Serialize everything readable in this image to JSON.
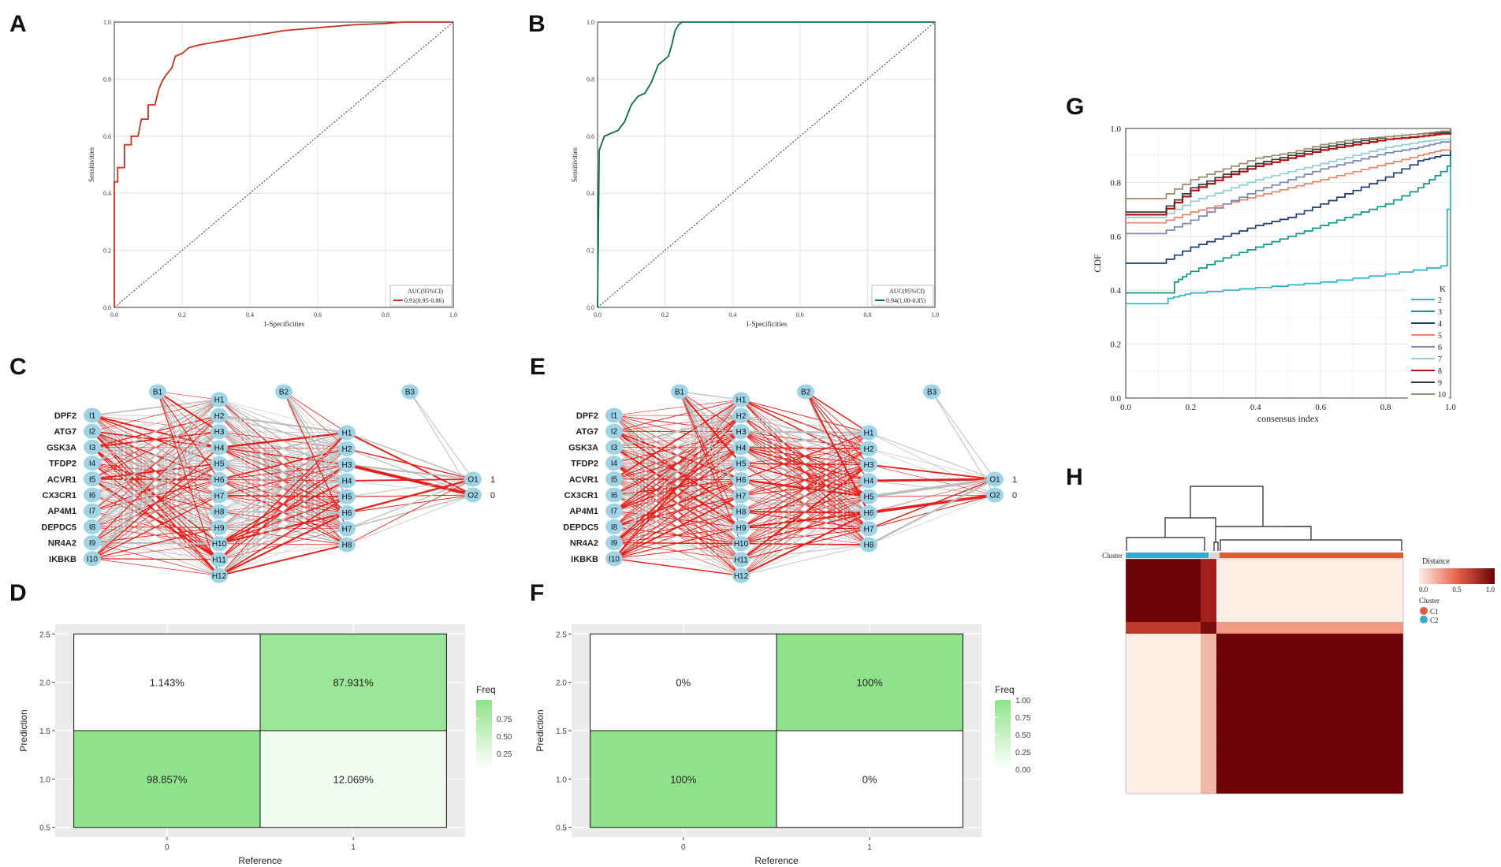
{
  "panel_labels": [
    "A",
    "B",
    "C",
    "D",
    "E",
    "F",
    "G",
    "H"
  ],
  "chart_data": [
    {
      "panel": "A",
      "type": "line",
      "title": "",
      "xlabel": "1-Specificities",
      "ylabel": "Sensitivities",
      "xlim": [
        0,
        1
      ],
      "ylim": [
        0,
        1
      ],
      "ticks": [
        "0.0",
        "0.2",
        "0.4",
        "0.6",
        "0.8",
        "1.0"
      ],
      "x": [
        0,
        0,
        0.01,
        0.01,
        0.03,
        0.03,
        0.05,
        0.05,
        0.07,
        0.08,
        0.1,
        0.1,
        0.12,
        0.13,
        0.14,
        0.15,
        0.17,
        0.18,
        0.2,
        0.22,
        0.25,
        0.3,
        0.35,
        0.4,
        0.5,
        0.6,
        0.7,
        0.8,
        0.85,
        0.9,
        1.0
      ],
      "y": [
        0,
        0.44,
        0.44,
        0.49,
        0.49,
        0.57,
        0.57,
        0.6,
        0.6,
        0.66,
        0.66,
        0.71,
        0.71,
        0.76,
        0.79,
        0.81,
        0.84,
        0.88,
        0.89,
        0.91,
        0.92,
        0.93,
        0.94,
        0.95,
        0.97,
        0.98,
        0.99,
        0.995,
        1,
        1,
        1
      ],
      "color": "#c8311f",
      "legend_title": "AUC(95%CI)",
      "legend_entry": "0.91(0.95-0.86)"
    },
    {
      "panel": "B",
      "type": "line",
      "title": "",
      "xlabel": "1-Specificities",
      "ylabel": "Sensitivities",
      "xlim": [
        0,
        1
      ],
      "ylim": [
        0,
        1
      ],
      "ticks": [
        "0.0",
        "0.2",
        "0.4",
        "0.6",
        "0.8",
        "1.0"
      ],
      "x": [
        0,
        0.005,
        0.02,
        0.04,
        0.06,
        0.08,
        0.1,
        0.12,
        0.14,
        0.16,
        0.18,
        0.2,
        0.21,
        0.22,
        0.23,
        0.24,
        0.25,
        0.27,
        0.3,
        0.5,
        1.0
      ],
      "y": [
        0,
        0.55,
        0.6,
        0.61,
        0.62,
        0.65,
        0.71,
        0.74,
        0.75,
        0.79,
        0.85,
        0.87,
        0.88,
        0.92,
        0.97,
        0.99,
        1,
        1,
        1,
        1,
        1
      ],
      "color": "#0e6b4c",
      "legend_title": "AUC(95%CI)",
      "legend_entry": "0.94(1.00-0.85)"
    },
    {
      "panel": "D",
      "type": "heatmap",
      "title": "",
      "xlabel": "Reference",
      "ylabel": "Prediction",
      "x_ticks": [
        "0",
        "1"
      ],
      "y_ticks": [
        "0.5",
        "1.0",
        "1.5",
        "2.0",
        "2.5"
      ],
      "cells": [
        {
          "ref": "0",
          "pred": "1",
          "label": "98.857%",
          "freq": 0.98857
        },
        {
          "ref": "1",
          "pred": "1",
          "label": "12.069%",
          "freq": 0.12069
        },
        {
          "ref": "0",
          "pred": "2",
          "label": "1.143%",
          "freq": 0.01143
        },
        {
          "ref": "1",
          "pred": "2",
          "label": "87.931%",
          "freq": 0.87931
        }
      ],
      "legend_title": "Freq",
      "legend_ticks": [
        "0.75",
        "0.50",
        "0.25"
      ]
    },
    {
      "panel": "F",
      "type": "heatmap",
      "title": "",
      "xlabel": "Reference",
      "ylabel": "Prediction",
      "x_ticks": [
        "0",
        "1"
      ],
      "y_ticks": [
        "0.5",
        "1.0",
        "1.5",
        "2.0",
        "2.5"
      ],
      "cells": [
        {
          "ref": "0",
          "pred": "1",
          "label": "100%",
          "freq": 1.0
        },
        {
          "ref": "1",
          "pred": "1",
          "label": "0%",
          "freq": 0.0
        },
        {
          "ref": "0",
          "pred": "2",
          "label": "0%",
          "freq": 0.0
        },
        {
          "ref": "1",
          "pred": "2",
          "label": "100%",
          "freq": 1.0
        }
      ],
      "legend_title": "Freq",
      "legend_ticks": [
        "1.00",
        "0.75",
        "0.50",
        "0.25",
        "0.00"
      ]
    },
    {
      "panel": "G",
      "type": "line",
      "title": "",
      "xlabel": "consensus index",
      "ylabel": "CDF",
      "xlim": [
        0,
        1
      ],
      "ylim": [
        0,
        1
      ],
      "ticks": [
        "0.0",
        "0.2",
        "0.4",
        "0.6",
        "0.8",
        "1.0"
      ],
      "legend_title": "K",
      "series": [
        {
          "name": "2",
          "color": "#2bb5cf",
          "x": [
            0,
            0.1,
            0.13,
            0.2,
            0.4,
            0.6,
            0.8,
            0.97,
            0.99,
            1.0
          ],
          "y": [
            0.35,
            0.35,
            0.37,
            0.39,
            0.41,
            0.43,
            0.46,
            0.49,
            0.7,
            1
          ]
        },
        {
          "name": "3",
          "color": "#11988a",
          "x": [
            0,
            0.1,
            0.15,
            0.2,
            0.3,
            0.4,
            0.5,
            0.6,
            0.7,
            0.8,
            0.9,
            0.97,
            0.99,
            1.0
          ],
          "y": [
            0.39,
            0.39,
            0.43,
            0.47,
            0.52,
            0.56,
            0.6,
            0.64,
            0.68,
            0.72,
            0.78,
            0.84,
            0.86,
            1
          ]
        },
        {
          "name": "4",
          "color": "#1f3c7a",
          "x": [
            0,
            0.1,
            0.2,
            0.3,
            0.4,
            0.5,
            0.6,
            0.7,
            0.8,
            0.9,
            0.97,
            1.0
          ],
          "y": [
            0.5,
            0.5,
            0.56,
            0.6,
            0.64,
            0.67,
            0.72,
            0.77,
            0.82,
            0.88,
            0.9,
            1
          ]
        },
        {
          "name": "5",
          "color": "#e8846a",
          "x": [
            0,
            0.1,
            0.2,
            0.3,
            0.4,
            0.5,
            0.6,
            0.7,
            0.8,
            0.9,
            0.97,
            1.0
          ],
          "y": [
            0.65,
            0.65,
            0.69,
            0.72,
            0.75,
            0.78,
            0.81,
            0.84,
            0.87,
            0.9,
            0.92,
            1
          ]
        },
        {
          "name": "6",
          "color": "#7b86b5",
          "x": [
            0,
            0.1,
            0.2,
            0.3,
            0.4,
            0.5,
            0.6,
            0.7,
            0.8,
            0.9,
            0.97,
            1.0
          ],
          "y": [
            0.61,
            0.61,
            0.66,
            0.72,
            0.77,
            0.81,
            0.85,
            0.88,
            0.91,
            0.93,
            0.95,
            1
          ]
        },
        {
          "name": "7",
          "color": "#8fcfcc",
          "x": [
            0,
            0.1,
            0.2,
            0.3,
            0.4,
            0.5,
            0.6,
            0.7,
            0.8,
            0.9,
            0.97,
            1.0
          ],
          "y": [
            0.67,
            0.67,
            0.73,
            0.77,
            0.81,
            0.84,
            0.87,
            0.9,
            0.93,
            0.95,
            0.96,
            1
          ]
        },
        {
          "name": "8",
          "color": "#b01414",
          "x": [
            0,
            0.1,
            0.2,
            0.3,
            0.4,
            0.5,
            0.6,
            0.7,
            0.8,
            0.9,
            0.97,
            1.0
          ],
          "y": [
            0.68,
            0.68,
            0.77,
            0.82,
            0.86,
            0.89,
            0.92,
            0.94,
            0.96,
            0.97,
            0.98,
            1
          ]
        },
        {
          "name": "9",
          "color": "#3b3b3b",
          "x": [
            0,
            0.1,
            0.2,
            0.3,
            0.4,
            0.5,
            0.6,
            0.7,
            0.8,
            0.9,
            0.97,
            1.0
          ],
          "y": [
            0.69,
            0.69,
            0.78,
            0.83,
            0.87,
            0.9,
            0.93,
            0.95,
            0.97,
            0.98,
            0.985,
            1
          ]
        },
        {
          "name": "10",
          "color": "#a08a6e",
          "x": [
            0,
            0.1,
            0.2,
            0.3,
            0.4,
            0.5,
            0.6,
            0.7,
            0.8,
            0.9,
            0.97,
            1.0
          ],
          "y": [
            0.74,
            0.74,
            0.81,
            0.85,
            0.89,
            0.91,
            0.94,
            0.96,
            0.97,
            0.98,
            0.99,
            1
          ]
        }
      ]
    }
  ],
  "network_C": {
    "inputs": [
      "DPF2",
      "ATG7",
      "GSK3A",
      "TFDP2",
      "ACVR1",
      "CX3CR1",
      "AP4M1",
      "DEPDC5",
      "NR4A2",
      "IKBKB"
    ],
    "input_nodes": [
      "I1",
      "I2",
      "I3",
      "I4",
      "I5",
      "I6",
      "I7",
      "I8",
      "I9",
      "I10"
    ],
    "hidden1": [
      "H1",
      "H2",
      "H3",
      "H4",
      "H5",
      "H6",
      "H7",
      "H8",
      "H9",
      "H10",
      "H11",
      "H12"
    ],
    "hidden2": [
      "H1",
      "H2",
      "H3",
      "H4",
      "H5",
      "H6",
      "H7",
      "H8"
    ],
    "outputs": [
      "O1",
      "O2"
    ],
    "output_labels": [
      "1",
      "0"
    ],
    "bias": [
      "B1",
      "B2",
      "B3"
    ]
  },
  "network_E": {
    "inputs": [
      "DPF2",
      "ATG7",
      "GSK3A",
      "TFDP2",
      "ACVR1",
      "CX3CR1",
      "AP4M1",
      "DEPDC5",
      "NR4A2",
      "IKBKB"
    ],
    "input_nodes": [
      "I1",
      "I2",
      "I3",
      "I4",
      "I5",
      "I6",
      "I7",
      "I8",
      "I9",
      "I10"
    ],
    "hidden1": [
      "H1",
      "H2",
      "H3",
      "H4",
      "H5",
      "H6",
      "H7",
      "H8",
      "H9",
      "H10",
      "H11",
      "H12"
    ],
    "hidden2": [
      "H1",
      "H2",
      "H3",
      "H4",
      "H5",
      "H6",
      "H7",
      "H8"
    ],
    "outputs": [
      "O1",
      "O2"
    ],
    "output_labels": [
      "1",
      "0"
    ],
    "bias": [
      "B1",
      "B2",
      "B3"
    ]
  },
  "panel_H": {
    "cluster_label": "Cluster",
    "legend_title": "Distance",
    "legend_ticks": [
      "0.0",
      "0.5",
      "1.0"
    ],
    "cluster_legend_title": "Cluster",
    "clusters": [
      {
        "name": "C1",
        "color": "#e05a3c"
      },
      {
        "name": "C2",
        "color": "#3aa8c9"
      }
    ],
    "dark_color": "#6b0308",
    "light_color": "#fdeee6"
  }
}
